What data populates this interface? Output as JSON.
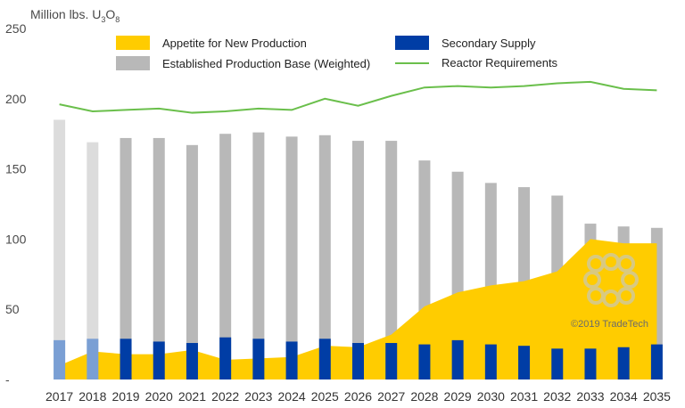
{
  "chart_data": {
    "type": "bar",
    "unit_label": {
      "prefix": "Million lbs. U",
      "sub1": "3",
      "mid": "O",
      "sub2": "8"
    },
    "categories": [
      "2017",
      "2018",
      "2019",
      "2020",
      "2021",
      "2022",
      "2023",
      "2024",
      "2025",
      "2026",
      "2027",
      "2028",
      "2029",
      "2030",
      "2031",
      "2032",
      "2033",
      "2034",
      "2035"
    ],
    "ylim": [
      0,
      250
    ],
    "yticks": [
      "-",
      "50",
      "100",
      "150",
      "200",
      "250"
    ],
    "series": [
      {
        "name": "Established Production Base (Weighted)",
        "kind": "bar",
        "color": "#b8b8b8",
        "historical_color": "#dcdcdc",
        "values": [
          185,
          169,
          172,
          172,
          167,
          175,
          176,
          173,
          174,
          170,
          170,
          156,
          148,
          140,
          137,
          131,
          111,
          109,
          108
        ]
      },
      {
        "name": "Secondary Supply",
        "kind": "bar",
        "color": "#003da5",
        "historical_color": "#7a9fd4",
        "values": [
          28,
          29,
          29,
          27,
          26,
          30,
          29,
          27,
          29,
          26,
          26,
          25,
          28,
          25,
          24,
          22,
          22,
          23,
          25
        ]
      },
      {
        "name": "Appetite for New Production",
        "kind": "area",
        "color": "#ffcc00",
        "values": [
          10,
          20,
          18,
          18,
          21,
          14,
          15,
          16,
          24,
          23,
          32,
          52,
          62,
          67,
          70,
          77,
          100,
          97,
          97
        ]
      },
      {
        "name": "Reactor Requirements",
        "kind": "line",
        "color": "#6abf4b",
        "values": [
          196,
          191,
          192,
          193,
          190,
          191,
          193,
          192,
          200,
          195,
          202,
          208,
          209,
          208,
          209,
          211,
          212,
          207,
          206
        ]
      }
    ],
    "historical_years": [
      "2017",
      "2018"
    ],
    "legend": [
      {
        "label": "Appetite for New Production",
        "color": "#ffcc00",
        "kind": "swatch"
      },
      {
        "label": "Secondary Supply",
        "color": "#003da5",
        "kind": "swatch"
      },
      {
        "label": "Established Production Base (Weighted)",
        "color": "#b8b8b8",
        "kind": "swatch"
      },
      {
        "label": "Reactor Requirements",
        "color": "#6abf4b",
        "kind": "line"
      }
    ],
    "legend_position": "top",
    "grid": false
  },
  "watermark": "©2019 TradeTech"
}
